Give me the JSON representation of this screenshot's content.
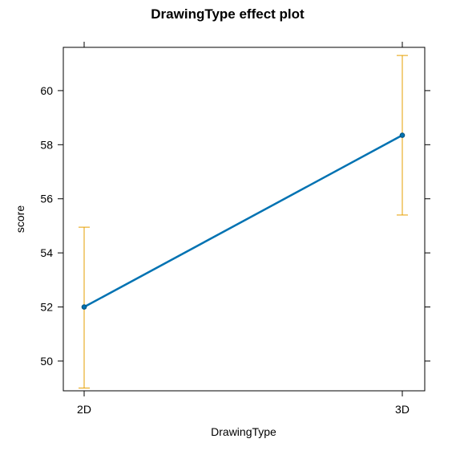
{
  "chart_data": {
    "type": "line",
    "title": "DrawingType effect plot",
    "xlabel": "DrawingType",
    "ylabel": "score",
    "categories": [
      "2D",
      "3D"
    ],
    "values": [
      52.0,
      58.35
    ],
    "lower": [
      49.0,
      55.4
    ],
    "upper": [
      54.95,
      61.3
    ],
    "ylim": [
      48.9,
      61.6
    ],
    "yticks": [
      50,
      52,
      54,
      56,
      58,
      60
    ],
    "grid": false,
    "colors": {
      "line": "#0072B2",
      "errorbar": "#E69F00",
      "frame": "#000000"
    }
  }
}
